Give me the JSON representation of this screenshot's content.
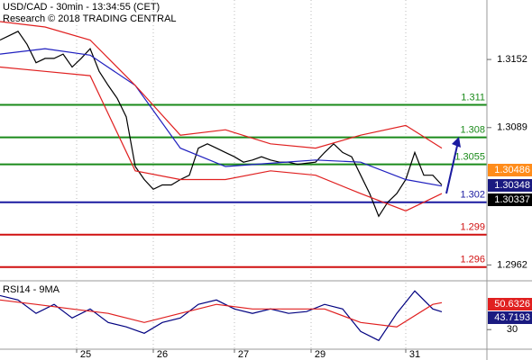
{
  "chart_data": [
    {
      "type": "line",
      "title": "USD/CAD - 30min - 13:34:55 (CET)",
      "subtitle": "Research © 2018 TRADING CENTRAL",
      "xlim": [
        0,
        108
      ],
      "xticks": [
        {
          "value": 17,
          "label": "25"
        },
        {
          "value": 34,
          "label": "26"
        },
        {
          "value": 52,
          "label": "27"
        },
        {
          "value": 69,
          "label": "29"
        },
        {
          "value": 90,
          "label": "31"
        }
      ],
      "ylim": [
        1.2949,
        1.3207
      ],
      "yticks": [
        1.3152,
        1.3089,
        1.2962
      ],
      "grid": true,
      "series": [
        {
          "color": "#000000",
          "x": [
            0,
            2,
            4,
            6,
            8,
            10,
            12,
            14,
            16,
            18,
            20,
            22,
            24,
            26,
            28,
            30,
            32,
            34,
            36,
            38,
            40,
            42,
            44,
            46,
            48,
            50,
            52,
            54,
            56,
            58,
            60,
            62,
            64,
            66,
            68,
            70,
            72,
            74,
            76,
            78,
            80,
            82,
            84,
            86,
            88,
            90,
            92,
            94,
            96,
            98
          ],
          "values": [
            1.317,
            1.3174,
            1.3178,
            1.3166,
            1.3149,
            1.3153,
            1.3153,
            1.3157,
            1.3145,
            1.3153,
            1.3162,
            1.3141,
            1.3128,
            1.3116,
            1.3099,
            1.3053,
            1.3041,
            1.3032,
            1.3036,
            1.3036,
            1.3041,
            1.3045,
            1.307,
            1.3074,
            1.307,
            1.3066,
            1.3062,
            1.3057,
            1.3059,
            1.3062,
            1.3059,
            1.3057,
            1.3057,
            1.3055,
            1.3056,
            1.3057,
            1.3066,
            1.3074,
            1.3066,
            1.3062,
            1.3045,
            1.3028,
            1.3007,
            1.302,
            1.3028,
            1.3041,
            1.3066,
            1.3045,
            1.3045,
            1.3036
          ]
        },
        {
          "color": "#1f1fbf",
          "x": [
            0,
            10,
            20,
            30,
            40,
            50,
            60,
            70,
            80,
            90,
            98
          ],
          "values": [
            1.3157,
            1.3162,
            1.3156,
            1.3128,
            1.307,
            1.3053,
            1.3056,
            1.3059,
            1.3057,
            1.3041,
            1.3035
          ]
        },
        {
          "color": "#e02020",
          "x": [
            0,
            10,
            20,
            30,
            40,
            50,
            60,
            70,
            80,
            90,
            98
          ],
          "values": [
            1.3187,
            1.3182,
            1.317,
            1.3128,
            1.3082,
            1.3087,
            1.3074,
            1.307,
            1.3082,
            1.3091,
            1.307
          ]
        },
        {
          "color": "#e02020",
          "x": [
            0,
            10,
            20,
            30,
            40,
            50,
            60,
            70,
            80,
            90,
            98
          ],
          "values": [
            1.3145,
            1.3141,
            1.3137,
            1.3049,
            1.3041,
            1.3041,
            1.3049,
            1.3045,
            1.3028,
            1.3012,
            1.3028
          ]
        }
      ],
      "levels": [
        {
          "value": 1.311,
          "color": "#1a8a1a"
        },
        {
          "value": 1.308,
          "color": "#1a8a1a"
        },
        {
          "value": 1.3055,
          "color": "#1a8a1a"
        },
        {
          "value": 1.302,
          "color": "#1a1aa0"
        },
        {
          "value": 1.299,
          "color": "#d01010"
        },
        {
          "value": 1.296,
          "color": "#d01010"
        }
      ],
      "markers": [
        {
          "value": 1.30486,
          "color": "#ff8c1a"
        },
        {
          "value": 1.30348,
          "color": "#1a1a80"
        },
        {
          "value": 1.30337,
          "color": "#000000"
        }
      ]
    },
    {
      "type": "line",
      "title": "RSI14 - 9MA",
      "xlim": [
        0,
        108
      ],
      "ylim": [
        15,
        66
      ],
      "yticks": [
        30
      ],
      "series": [
        {
          "color": "#000080",
          "x": [
            0,
            4,
            8,
            12,
            16,
            20,
            24,
            28,
            32,
            36,
            40,
            44,
            48,
            52,
            56,
            60,
            64,
            68,
            72,
            76,
            80,
            84,
            88,
            92,
            96,
            98
          ],
          "values": [
            56.1,
            52.7,
            42.4,
            49.3,
            38.9,
            45.8,
            35.5,
            32.1,
            27.2,
            35.5,
            38.9,
            49.3,
            52.7,
            45.8,
            42.4,
            45.8,
            42.4,
            43.8,
            49.3,
            45.8,
            28.6,
            21.7,
            42.4,
            59.6,
            45.8,
            43.7
          ]
        },
        {
          "color": "#e02020",
          "x": [
            0,
            8,
            16,
            24,
            32,
            40,
            48,
            56,
            64,
            72,
            80,
            88,
            96,
            98
          ],
          "values": [
            52.7,
            49.3,
            45.8,
            42.4,
            35.5,
            42.4,
            49.3,
            45.8,
            45.8,
            45.8,
            35.5,
            32.1,
            49.3,
            50.6
          ]
        }
      ],
      "markers": [
        {
          "value": 50.6326,
          "color": "#e02020"
        },
        {
          "value": 43.7193,
          "color": "#1a1a80"
        }
      ]
    }
  ]
}
